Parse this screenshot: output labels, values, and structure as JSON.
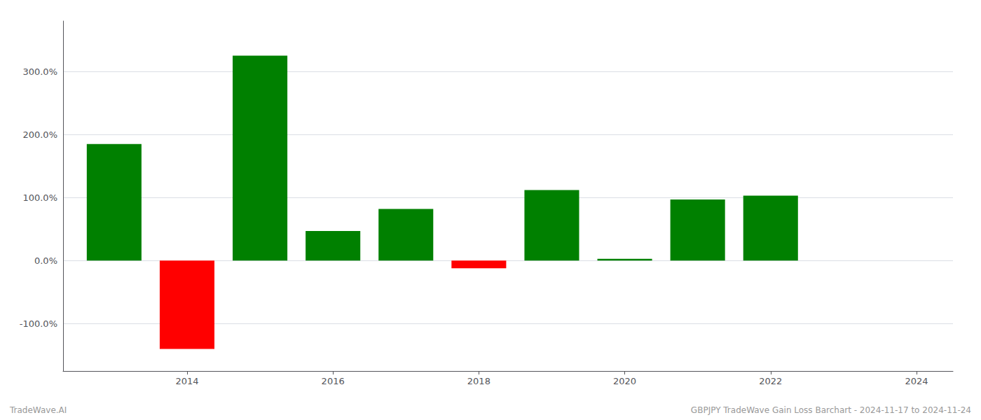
{
  "chart_data": {
    "type": "bar",
    "x": [
      2013,
      2014,
      2015,
      2016,
      2017,
      2018,
      2019,
      2020,
      2021,
      2022,
      2023
    ],
    "values": [
      1.85,
      -1.4,
      3.25,
      0.47,
      0.82,
      -0.12,
      1.12,
      0.03,
      0.97,
      1.03,
      0.0
    ],
    "colors": [
      "#008000",
      "#ff0000",
      "#008000",
      "#008000",
      "#008000",
      "#ff0000",
      "#008000",
      "#008000",
      "#008000",
      "#008000",
      "#008000"
    ],
    "xlim": [
      2012.3,
      2024.5
    ],
    "xticks": [
      2014,
      2016,
      2018,
      2020,
      2022,
      2024
    ],
    "ylim": [
      -1.75,
      3.8
    ],
    "yticks": [
      {
        "value": -1.0,
        "label": "-100.0%"
      },
      {
        "value": 0.0,
        "label": "0.0%"
      },
      {
        "value": 1.0,
        "label": "100.0%"
      },
      {
        "value": 2.0,
        "label": "200.0%"
      },
      {
        "value": 3.0,
        "label": "300.0%"
      }
    ],
    "grid": true,
    "annotations": [
      "TradeWave.AI",
      "GBPJPY TradeWave Gain Loss Barchart - 2024-11-17 to 2024-11-24"
    ]
  }
}
